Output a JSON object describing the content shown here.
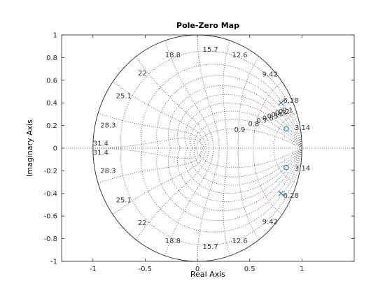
{
  "chart_data": {
    "type": "scatter",
    "title": "Pole-Zero Map",
    "xlabel": "Real Axis",
    "ylabel": "Imaginary Axis",
    "xlim": [
      -1.3,
      1.5
    ],
    "ylim": [
      -1,
      1
    ],
    "x_ticks": [
      -1,
      -0.5,
      0,
      0.5,
      1
    ],
    "x_tick_labels": [
      "-1",
      "-0.5",
      "0",
      "0.5",
      "1"
    ],
    "y_ticks": [
      -1,
      -0.8,
      -0.6,
      -0.4,
      -0.2,
      0,
      0.2,
      0.4,
      0.6,
      0.8,
      1
    ],
    "y_tick_labels": [
      "-1",
      "-0.8",
      "-0.6",
      "-0.4",
      "-0.2",
      "0",
      "0.2",
      "0.4",
      "0.6",
      "0.8",
      "1"
    ],
    "grid": true,
    "unit_circle": true,
    "series": [
      {
        "marker": "x",
        "color": "#0072BD",
        "points": [
          [
            0.8,
            0.4
          ],
          [
            0.8,
            -0.4
          ]
        ]
      },
      {
        "marker": "o",
        "color": "#0072BD",
        "points": [
          [
            0.85,
            0.17
          ],
          [
            0.85,
            -0.17
          ]
        ]
      }
    ],
    "damping_lines": [
      0.1,
      0.2,
      0.3,
      0.4,
      0.5,
      0.6,
      0.7,
      0.8,
      0.9
    ],
    "damping_labels": [
      "0.1",
      "0.2",
      "0.3",
      "0.4",
      "0.5",
      "0.6",
      "0.7",
      "0.8",
      "0.9"
    ],
    "natural_frequency_curves": [
      0.1,
      0.2,
      0.3,
      0.4,
      0.5,
      0.6,
      0.7,
      0.8,
      0.9,
      1.0
    ],
    "natural_frequency_labels": [
      "3.14",
      "6.28",
      "9.42",
      "12.6",
      "15.7",
      "18.8",
      "22",
      "25.1",
      "28.3",
      "31.4"
    ],
    "natural_frequency_label_points": [
      [
        0.93,
        0.18
      ],
      [
        0.82,
        0.42
      ],
      [
        0.62,
        0.65
      ],
      [
        0.33,
        0.82
      ],
      [
        0.05,
        0.87
      ],
      [
        -0.31,
        0.82
      ],
      [
        -0.57,
        0.66
      ],
      [
        -0.78,
        0.46
      ],
      [
        -0.93,
        0.2
      ],
      [
        -1.0,
        0.04
      ]
    ]
  }
}
